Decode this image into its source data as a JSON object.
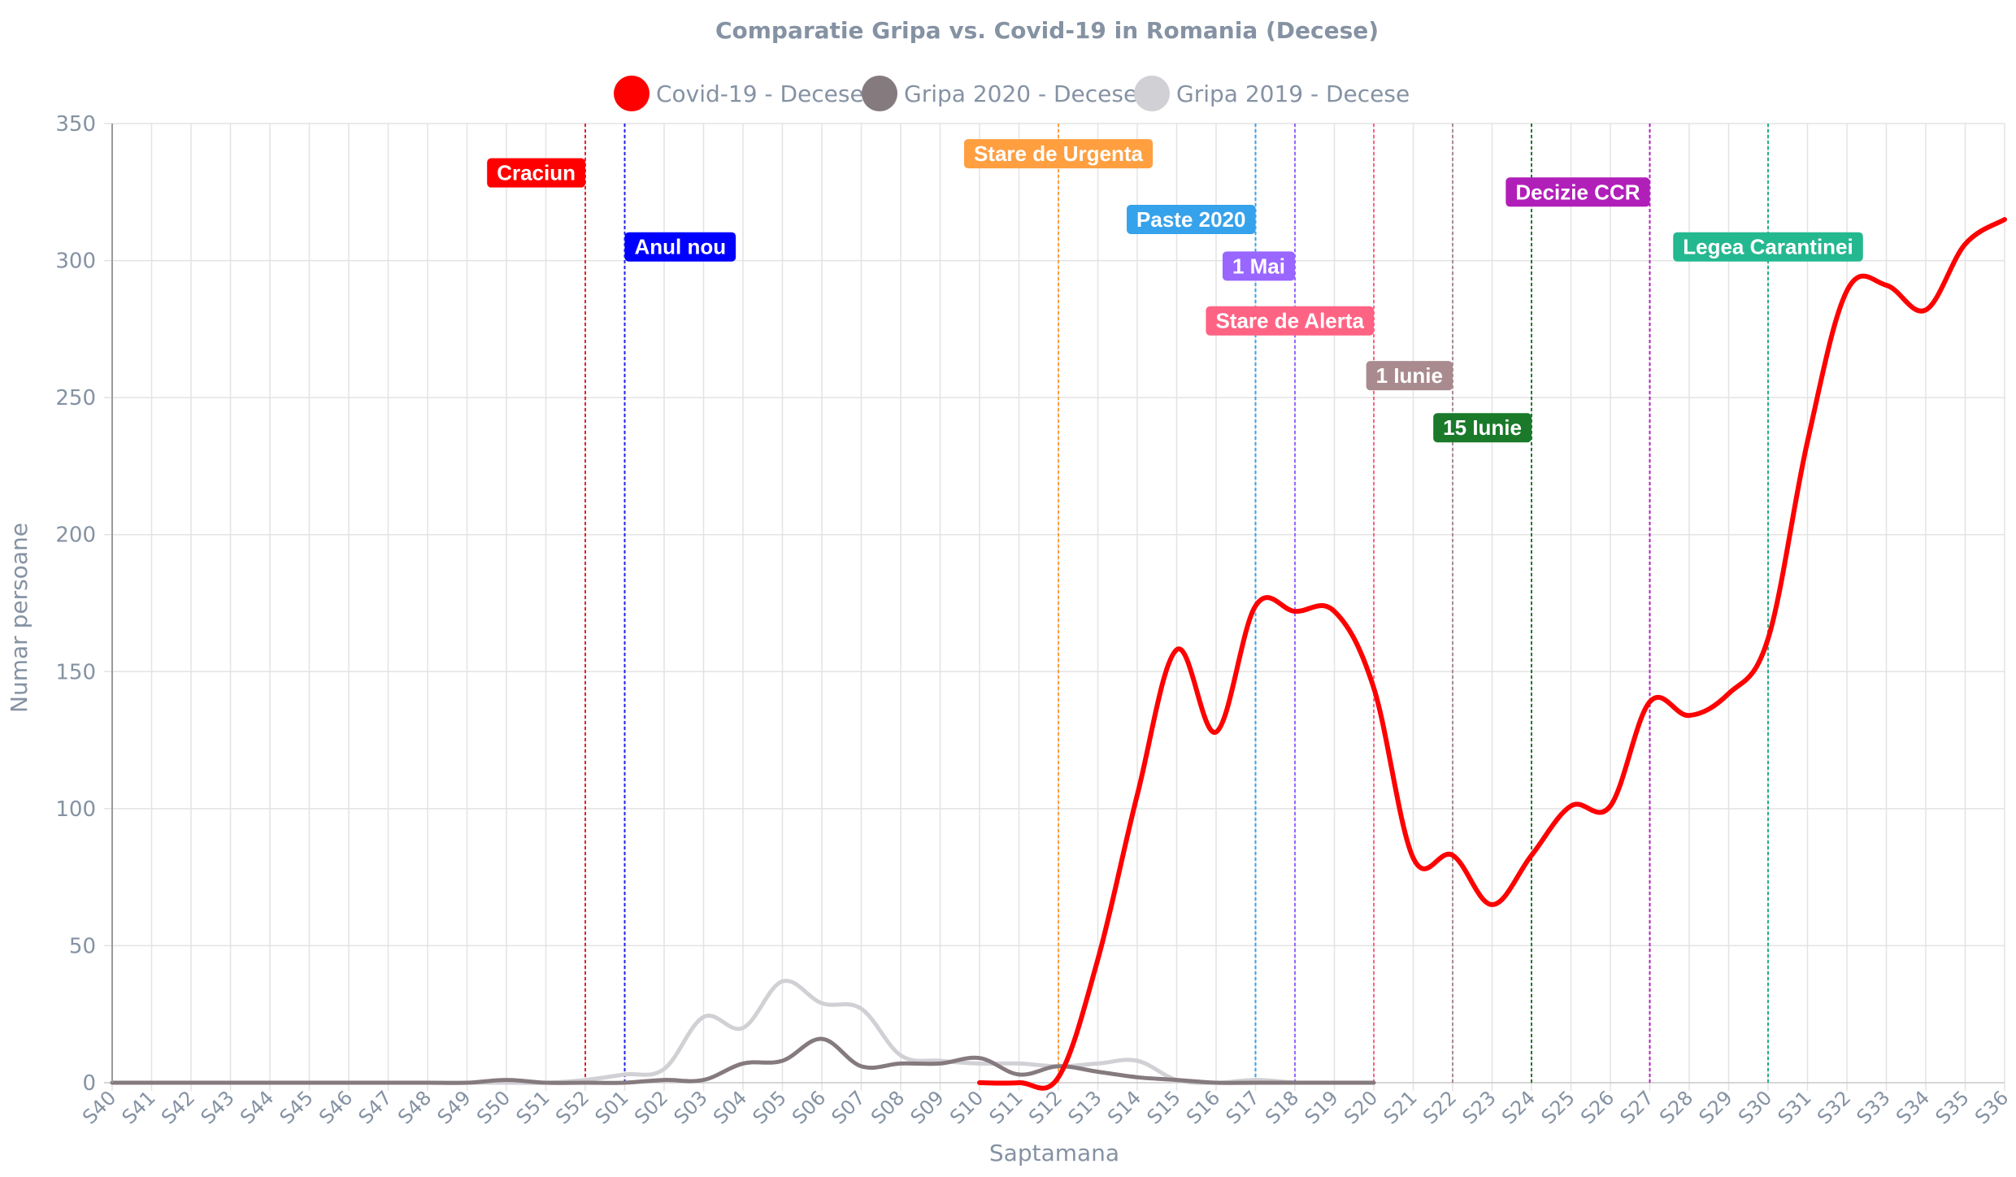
{
  "chart_data": {
    "type": "line",
    "title": "Comparatie Gripa vs. Covid-19 in Romania (Decese)",
    "xlabel": "Saptamana",
    "ylabel": "Numar persoane",
    "ylim": [
      0,
      350
    ],
    "yticks": [
      0,
      50,
      100,
      150,
      200,
      250,
      300,
      350
    ],
    "grid": true,
    "legend_position": "top-center",
    "categories": [
      "S40",
      "S41",
      "S42",
      "S43",
      "S44",
      "S45",
      "S46",
      "S47",
      "S48",
      "S49",
      "S50",
      "S51",
      "S52",
      "S01",
      "S02",
      "S03",
      "S04",
      "S05",
      "S06",
      "S07",
      "S08",
      "S09",
      "S10",
      "S11",
      "S12",
      "S13",
      "S14",
      "S15",
      "S16",
      "S17",
      "S18",
      "S19",
      "S20",
      "S21",
      "S22",
      "S23",
      "S24",
      "S25",
      "S26",
      "S27",
      "S28",
      "S29",
      "S30",
      "S31",
      "S32",
      "S33",
      "S34",
      "S35",
      "S36"
    ],
    "series": [
      {
        "name": "Gripa 2019 - Decese",
        "color": "#d0d0d5",
        "values": [
          0,
          0,
          0,
          0,
          0,
          0,
          0,
          0,
          0,
          0,
          0,
          0,
          1,
          3,
          5,
          24,
          20,
          37,
          29,
          27,
          10,
          8,
          7,
          7,
          6,
          7,
          8,
          1,
          0,
          1,
          0,
          null,
          null,
          null,
          null,
          null,
          null,
          null,
          null,
          null,
          null,
          null,
          null,
          null,
          null,
          null,
          null,
          null,
          null
        ]
      },
      {
        "name": "Gripa 2020 - Decese",
        "color": "#857a7e",
        "values": [
          0,
          0,
          0,
          0,
          0,
          0,
          0,
          0,
          0,
          0,
          1,
          0,
          0,
          0,
          1,
          1,
          7,
          8,
          16,
          6,
          7,
          7,
          9,
          3,
          6,
          4,
          2,
          1,
          0,
          0,
          0,
          0,
          0,
          null,
          null,
          null,
          null,
          null,
          null,
          null,
          null,
          null,
          null,
          null,
          null,
          null,
          null,
          null,
          null
        ]
      },
      {
        "name": "Covid-19 - Decese",
        "color": "#ff0000",
        "values": [
          null,
          null,
          null,
          null,
          null,
          null,
          null,
          null,
          null,
          null,
          null,
          null,
          null,
          null,
          null,
          null,
          null,
          null,
          null,
          null,
          null,
          null,
          0,
          0,
          2,
          45,
          105,
          158,
          128,
          174,
          172,
          172,
          144,
          82,
          83,
          65,
          83,
          101,
          101,
          139,
          134,
          142,
          162,
          234,
          289,
          291,
          282,
          306,
          315
        ]
      }
    ],
    "annotations": [
      {
        "label": "Craciun",
        "week": "S52",
        "line_color": "#e1252b",
        "box_color": "#ff0000",
        "label_value": 332,
        "label_anchor": "left"
      },
      {
        "label": "Anul nou",
        "week": "S01",
        "line_color": "#2222ee",
        "box_color": "#0000ff",
        "label_value": 305,
        "label_anchor": "right"
      },
      {
        "label": "Stare de Urgenta",
        "week": "S12",
        "line_color": "#ff9f40",
        "box_color": "#ff9f40",
        "label_value": 339,
        "label_anchor": "center"
      },
      {
        "label": "Paste 2020",
        "week": "S17",
        "line_color": "#36a2eb",
        "box_color": "#36a2eb",
        "label_value": 315,
        "label_anchor": "left"
      },
      {
        "label": "1 Mai",
        "week": "S18",
        "line_color": "#9966ff",
        "box_color": "#9966ff",
        "label_value": 298,
        "label_anchor": "left"
      },
      {
        "label": "Stare de Alerta",
        "week": "S20",
        "line_color": "#ff6384",
        "box_color": "#ff6384",
        "label_value": 278,
        "label_anchor": "left"
      },
      {
        "label": "1 Iunie",
        "week": "S22",
        "line_color": "#a98b8f",
        "box_color": "#a98b8f",
        "label_value": 258,
        "label_anchor": "left"
      },
      {
        "label": "15 Iunie",
        "week": "S24",
        "line_color": "#1f7a2a",
        "box_color": "#1a7a2a",
        "label_value": 239,
        "label_anchor": "left"
      },
      {
        "label": "Decizie CCR",
        "week": "S27",
        "line_color": "#b61fbf",
        "box_color": "#b11fb9",
        "label_value": 325,
        "label_anchor": "left"
      },
      {
        "label": "Legea Carantinei",
        "week": "S30",
        "line_color": "#20b28a",
        "box_color": "#24b890",
        "label_value": 305,
        "label_anchor": "center"
      }
    ]
  }
}
